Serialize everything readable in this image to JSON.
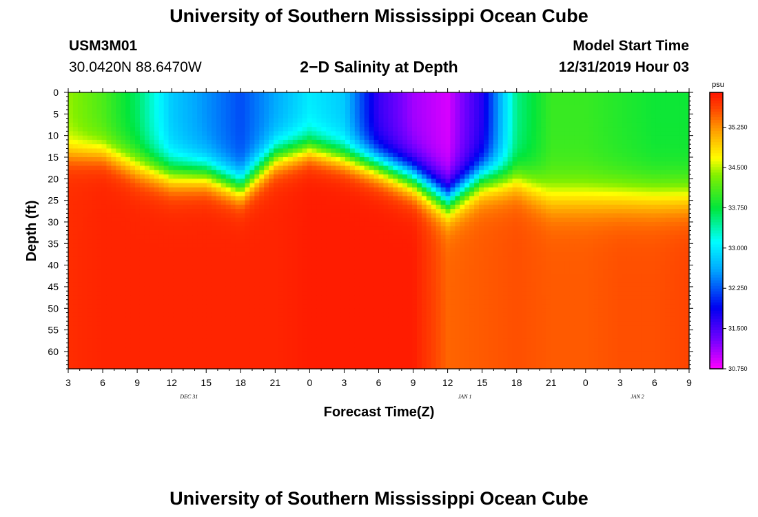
{
  "header": {
    "title_top": "University of Southern Mississippi Ocean Cube",
    "title_bottom": "University of Southern Mississippi Ocean Cube",
    "station_id": "USM3M01",
    "coordinates": "30.0420N 88.6470W",
    "plot_title": "2−D Salinity at Depth",
    "model_start_label": "Model Start Time",
    "model_start_value": "12/31/2019 Hour 03"
  },
  "chart_data": {
    "type": "heatmap",
    "title": "2−D Salinity at Depth",
    "xlabel": "Forecast Time(Z)",
    "ylabel": "Depth (ft)",
    "x_ticks": [
      "3",
      "6",
      "9",
      "12",
      "15",
      "18",
      "21",
      "0",
      "3",
      "6",
      "9",
      "12",
      "15",
      "18",
      "21",
      "0",
      "3",
      "6",
      "9"
    ],
    "x_date_labels": [
      {
        "label": "DEC 31",
        "tick_index": 3.5
      },
      {
        "label": "JAN 1",
        "tick_index": 11.5
      },
      {
        "label": "JAN 2",
        "tick_index": 16.5
      }
    ],
    "y_ticks": [
      0,
      5,
      10,
      15,
      20,
      25,
      30,
      35,
      40,
      45,
      50,
      55,
      60
    ],
    "ylim": [
      0,
      64
    ],
    "x_hours_range": [
      0,
      54
    ],
    "units": "psu",
    "colorbar": {
      "ticks": [
        "35.250",
        "34.500",
        "33.750",
        "33.000",
        "32.250",
        "31.500",
        "30.750"
      ],
      "range": [
        30.75,
        35.9
      ]
    },
    "profiles": [
      {
        "hour": 0,
        "surface": 34.4,
        "halocline_depth": 14,
        "thickness": 10,
        "deep": 35.75
      },
      {
        "hour": 3,
        "surface": 34.1,
        "halocline_depth": 14,
        "thickness": 10,
        "deep": 35.8
      },
      {
        "hour": 6,
        "surface": 33.6,
        "halocline_depth": 17,
        "thickness": 12,
        "deep": 35.8
      },
      {
        "hour": 9,
        "surface": 32.8,
        "halocline_depth": 19,
        "thickness": 12,
        "deep": 35.8
      },
      {
        "hour": 12,
        "surface": 32.5,
        "halocline_depth": 19,
        "thickness": 11,
        "deep": 35.8
      },
      {
        "hour": 15,
        "surface": 32.2,
        "halocline_depth": 22,
        "thickness": 11,
        "deep": 35.8
      },
      {
        "hour": 18,
        "surface": 32.6,
        "halocline_depth": 15,
        "thickness": 11,
        "deep": 35.8
      },
      {
        "hour": 21,
        "surface": 33.0,
        "halocline_depth": 13,
        "thickness": 10,
        "deep": 35.85
      },
      {
        "hour": 24,
        "surface": 32.8,
        "halocline_depth": 15,
        "thickness": 10,
        "deep": 35.85
      },
      {
        "hour": 27,
        "surface": 31.6,
        "halocline_depth": 17,
        "thickness": 11,
        "deep": 35.85
      },
      {
        "hour": 30,
        "surface": 31.1,
        "halocline_depth": 20,
        "thickness": 12,
        "deep": 35.85
      },
      {
        "hour": 33,
        "surface": 30.9,
        "halocline_depth": 25,
        "thickness": 12,
        "deep": 35.45
      },
      {
        "hour": 36,
        "surface": 31.7,
        "halocline_depth": 20,
        "thickness": 12,
        "deep": 35.5
      },
      {
        "hour": 39,
        "surface": 33.5,
        "halocline_depth": 20,
        "thickness": 12,
        "deep": 35.55
      },
      {
        "hour": 42,
        "surface": 34.0,
        "halocline_depth": 24,
        "thickness": 14,
        "deep": 35.5
      },
      {
        "hour": 45,
        "surface": 34.0,
        "halocline_depth": 24,
        "thickness": 14,
        "deep": 35.5
      },
      {
        "hour": 48,
        "surface": 33.9,
        "halocline_depth": 24,
        "thickness": 14,
        "deep": 35.55
      },
      {
        "hour": 51,
        "surface": 33.8,
        "halocline_depth": 24,
        "thickness": 14,
        "deep": 35.55
      },
      {
        "hour": 54,
        "surface": 33.8,
        "halocline_depth": 24,
        "thickness": 14,
        "deep": 35.6
      }
    ]
  }
}
